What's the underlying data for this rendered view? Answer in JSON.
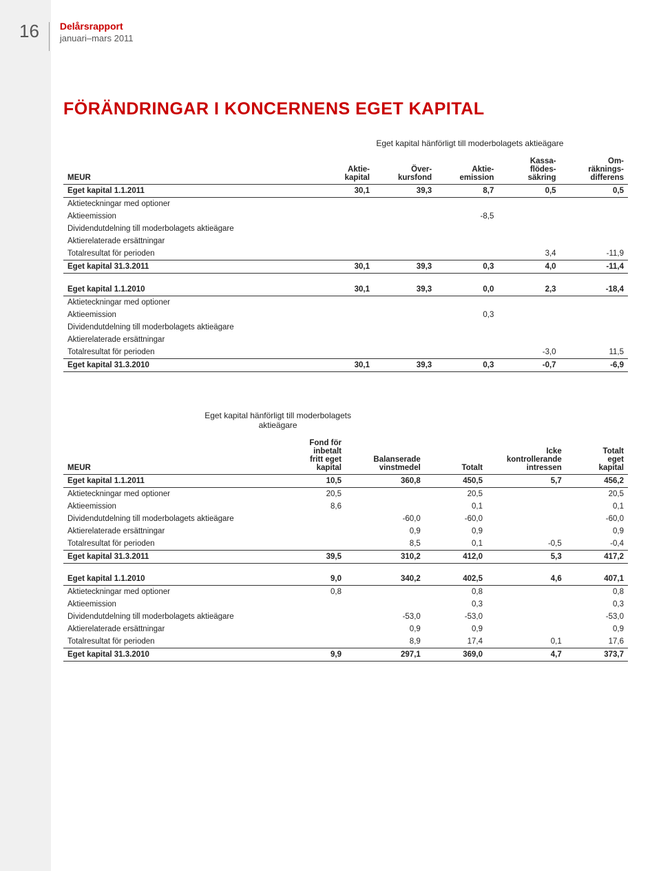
{
  "page": {
    "number": "16",
    "doc_title": "Delårsrapport",
    "doc_sub": "januari–mars 2011"
  },
  "section_title": "FÖRÄNDRINGAR I KONCERNENS EGET KAPITAL",
  "table1": {
    "supertitle": "Eget kapital hänförligt till moderbolagets aktieägare",
    "headers": [
      "MEUR",
      "Aktie-\nkapital",
      "Över-\nkursfond",
      "Aktie-\nemission",
      "Kassa-\nflödes-\nsäkring",
      "Om-\nräknings-\ndifferens"
    ],
    "groups": [
      {
        "open": {
          "label": "Eget kapital 1.1.2011",
          "vals": [
            "30,1",
            "39,3",
            "8,7",
            "0,5",
            "0,5"
          ]
        },
        "rows": [
          {
            "label": "Aktieteckningar med optioner",
            "vals": [
              "",
              "",
              "",
              "",
              ""
            ]
          },
          {
            "label": "Aktieemission",
            "vals": [
              "",
              "",
              "-8,5",
              "",
              ""
            ]
          },
          {
            "label": "Dividendutdelning till moderbolagets aktieägare",
            "vals": [
              "",
              "",
              "",
              "",
              ""
            ]
          },
          {
            "label": "Aktierelaterade ersättningar",
            "vals": [
              "",
              "",
              "",
              "",
              ""
            ]
          },
          {
            "label": "Totalresultat för perioden",
            "vals": [
              "",
              "",
              "",
              "3,4",
              "-11,9"
            ]
          }
        ],
        "close": {
          "label": "Eget kapital 31.3.2011",
          "vals": [
            "30,1",
            "39,3",
            "0,3",
            "4,0",
            "-11,4"
          ]
        }
      },
      {
        "open": {
          "label": "Eget kapital 1.1.2010",
          "vals": [
            "30,1",
            "39,3",
            "0,0",
            "2,3",
            "-18,4"
          ]
        },
        "rows": [
          {
            "label": "Aktieteckningar med optioner",
            "vals": [
              "",
              "",
              "",
              "",
              ""
            ]
          },
          {
            "label": "Aktieemission",
            "vals": [
              "",
              "",
              "0,3",
              "",
              ""
            ]
          },
          {
            "label": "Dividendutdelning till moderbolagets aktieägare",
            "vals": [
              "",
              "",
              "",
              "",
              ""
            ]
          },
          {
            "label": "Aktierelaterade ersättningar",
            "vals": [
              "",
              "",
              "",
              "",
              ""
            ]
          },
          {
            "label": "Totalresultat för perioden",
            "vals": [
              "",
              "",
              "",
              "-3,0",
              "11,5"
            ]
          }
        ],
        "close": {
          "label": "Eget kapital 31.3.2010",
          "vals": [
            "30,1",
            "39,3",
            "0,3",
            "-0,7",
            "-6,9"
          ]
        }
      }
    ]
  },
  "table2": {
    "supertitle": "Eget kapital hänförligt till\nmoderbolagets aktieägare",
    "headers": [
      "MEUR",
      "Fond för\ninbetalt\nfritt eget\nkapital",
      "Balanserade\nvinstmedel",
      "Totalt",
      "Icke\nkontrollerande\nintressen",
      "Totalt\neget\nkapital"
    ],
    "groups": [
      {
        "open": {
          "label": "Eget kapital 1.1.2011",
          "vals": [
            "10,5",
            "360,8",
            "450,5",
            "5,7",
            "456,2"
          ]
        },
        "rows": [
          {
            "label": "Aktieteckningar med optioner",
            "vals": [
              "20,5",
              "",
              "20,5",
              "",
              "20,5"
            ]
          },
          {
            "label": "Aktieemission",
            "vals": [
              "8,6",
              "",
              "0,1",
              "",
              "0,1"
            ]
          },
          {
            "label": "Dividendutdelning till moderbolagets aktieägare",
            "vals": [
              "",
              "-60,0",
              "-60,0",
              "",
              "-60,0"
            ]
          },
          {
            "label": "Aktierelaterade ersättningar",
            "vals": [
              "",
              "0,9",
              "0,9",
              "",
              "0,9"
            ]
          },
          {
            "label": "Totalresultat för perioden",
            "vals": [
              "",
              "8,5",
              "0,1",
              "-0,5",
              "-0,4"
            ]
          }
        ],
        "close": {
          "label": "Eget kapital 31.3.2011",
          "vals": [
            "39,5",
            "310,2",
            "412,0",
            "5,3",
            "417,2"
          ]
        }
      },
      {
        "open": {
          "label": "Eget kapital 1.1.2010",
          "vals": [
            "9,0",
            "340,2",
            "402,5",
            "4,6",
            "407,1"
          ]
        },
        "rows": [
          {
            "label": "Aktieteckningar med optioner",
            "vals": [
              "0,8",
              "",
              "0,8",
              "",
              "0,8"
            ]
          },
          {
            "label": "Aktieemission",
            "vals": [
              "",
              "",
              "0,3",
              "",
              "0,3"
            ]
          },
          {
            "label": "Dividendutdelning till moderbolagets aktieägare",
            "vals": [
              "",
              "-53,0",
              "-53,0",
              "",
              "-53,0"
            ]
          },
          {
            "label": "Aktierelaterade ersättningar",
            "vals": [
              "",
              "0,9",
              "0,9",
              "",
              "0,9"
            ]
          },
          {
            "label": "Totalresultat för perioden",
            "vals": [
              "",
              "8,9",
              "17,4",
              "0,1",
              "17,6"
            ]
          }
        ],
        "close": {
          "label": "Eget kapital 31.3.2010",
          "vals": [
            "9,9",
            "297,1",
            "369,0",
            "4,7",
            "373,7"
          ]
        }
      }
    ]
  }
}
